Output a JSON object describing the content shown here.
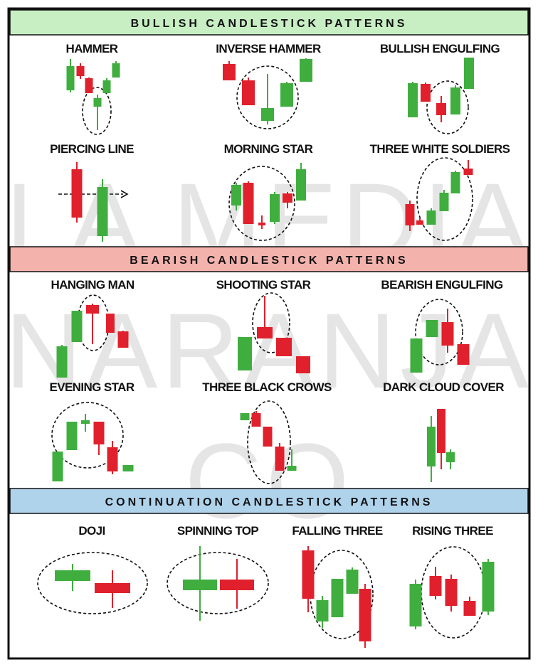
{
  "colors": {
    "bullish": "#3fae3f",
    "bearish": "#e0202c",
    "bullish_banner": "#c8efc4",
    "bearish_banner": "#f4b2ad",
    "continuation_banner": "#b0d3ec",
    "border": "#111111"
  },
  "watermark": [
    "LA MEDIA",
    "NARANJA",
    "CO"
  ],
  "sections": [
    {
      "title": "BULLISH CANDLESTICK PATTERNS",
      "patterns": [
        {
          "name": "HAMMER"
        },
        {
          "name": "INVERSE HAMMER"
        },
        {
          "name": "BULLISH ENGULFING"
        },
        {
          "name": "PIERCING LINE"
        },
        {
          "name": "MORNING STAR"
        },
        {
          "name": "THREE WHITE SOLDIERS"
        }
      ]
    },
    {
      "title": "BEARISH CANDLESTICK PATTERNS",
      "patterns": [
        {
          "name": "HANGING MAN"
        },
        {
          "name": "SHOOTING STAR"
        },
        {
          "name": "BEARISH ENGULFING"
        },
        {
          "name": "EVENING STAR"
        },
        {
          "name": "THREE BLACK CROWS"
        },
        {
          "name": "DARK CLOUD COVER"
        }
      ]
    },
    {
      "title": "CONTINUATION CANDLESTICK PATTERNS",
      "patterns": [
        {
          "name": "DOJI"
        },
        {
          "name": "SPINNING TOP"
        },
        {
          "name": "FALLING THREE"
        },
        {
          "name": "RISING THREE"
        }
      ]
    }
  ]
}
